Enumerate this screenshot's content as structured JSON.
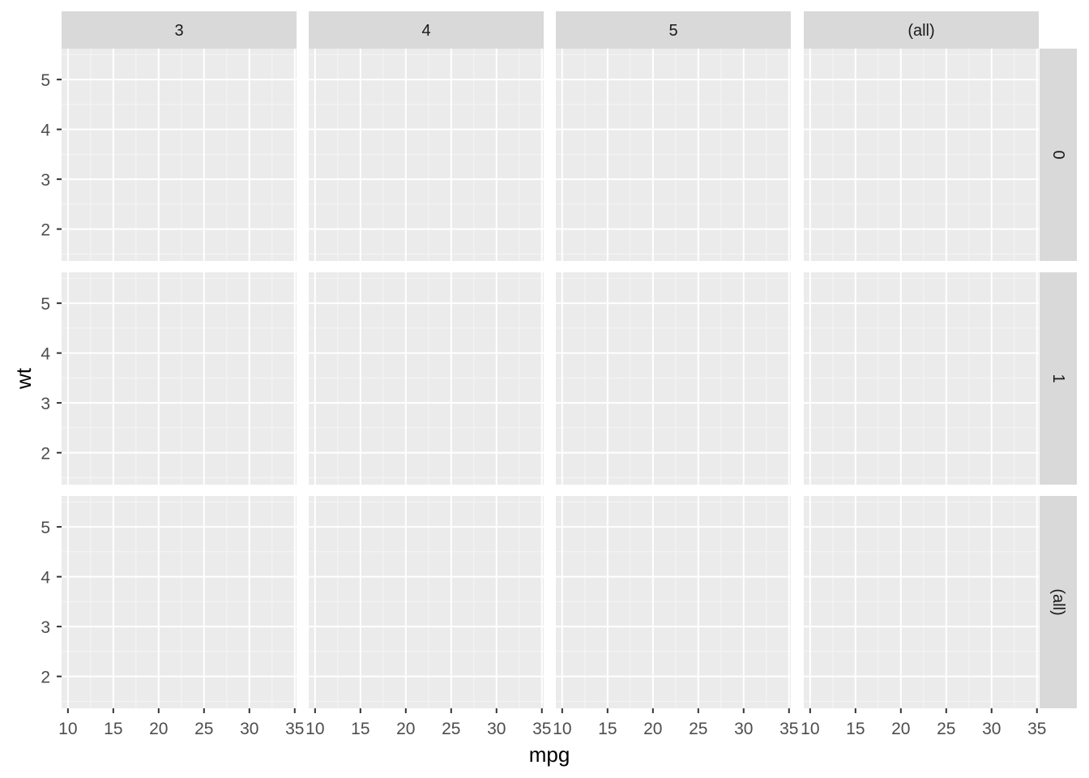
{
  "chart_data": {
    "type": "scatter",
    "title": "",
    "xlabel": "mpg",
    "ylabel": "wt",
    "xlim": [
      9.3,
      35.2
    ],
    "ylim": [
      1.36,
      5.62
    ],
    "x_ticks": [
      10,
      15,
      20,
      25,
      30,
      35
    ],
    "x_tick_labels": [
      "10",
      "15",
      "20",
      "25",
      "30",
      "35"
    ],
    "y_ticks": [
      2,
      3,
      4,
      5
    ],
    "y_tick_labels": [
      "2",
      "3",
      "4",
      "5"
    ],
    "x_minor_ticks": [
      12.5,
      17.5,
      22.5,
      27.5,
      32.5
    ],
    "y_minor_ticks": [
      1.5,
      2.5,
      3.5,
      4.5,
      5.5
    ],
    "facet_columns": [
      "3",
      "4",
      "5",
      "(all)"
    ],
    "facet_rows": [
      "0",
      "1",
      "(all)"
    ],
    "series": [],
    "grid": true,
    "legend": "none"
  },
  "colors": {
    "panel_background": "#ebebeb",
    "grid_major": "#ffffff",
    "grid_minor": "#f5f5f5",
    "strip_background": "#d9d9d9",
    "strip_text": "#1a1a1a",
    "tick_mark": "#333333",
    "tick_label": "#4d4d4d",
    "axis_title": "#000000"
  }
}
